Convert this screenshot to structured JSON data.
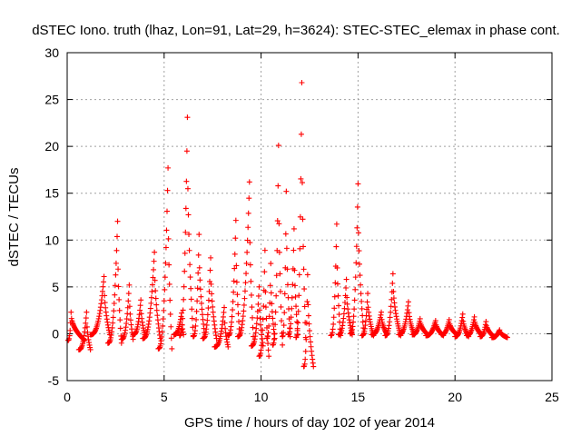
{
  "chart_data": {
    "type": "scatter",
    "title": "dSTEC Iono. truth (lhaz, Lon=91, Lat=29, h=3624): STEC-STEC_elemax in phase cont.",
    "xlabel": "GPS time / hours of day 102 of year 2014",
    "ylabel": "dSTEC  / TECUs",
    "xlim": [
      0,
      25
    ],
    "ylim": [
      -5,
      30
    ],
    "xticks": [
      "0",
      "5",
      "10",
      "15",
      "20",
      "25"
    ],
    "yticks": [
      "-5",
      "0",
      "5",
      "10",
      "15",
      "20",
      "25",
      "30"
    ],
    "grid": true,
    "marker": "+",
    "marker_color": "#ff0000",
    "arcs_note": "Each arc: start hour, peak hour, end hour, minimum dSTEC, peak dSTEC",
    "arcs": [
      {
        "start": 0.05,
        "peak": 0.2,
        "end": 0.9,
        "min": -0.7,
        "max": 2.3
      },
      {
        "start": 0.6,
        "peak": 1.0,
        "end": 1.2,
        "min": -1.7,
        "max": 2.3
      },
      {
        "start": 1.2,
        "peak": 1.9,
        "end": 2.2,
        "min": -0.1,
        "max": 6.1
      },
      {
        "start": 2.1,
        "peak": 2.6,
        "end": 2.8,
        "min": -1.0,
        "max": 12.0
      },
      {
        "start": 2.8,
        "peak": 3.2,
        "end": 3.4,
        "min": -0.6,
        "max": 5.2
      },
      {
        "start": 3.4,
        "peak": 3.8,
        "end": 4.0,
        "min": -0.1,
        "max": 3.6
      },
      {
        "start": 3.9,
        "peak": 4.5,
        "end": 4.8,
        "min": -0.5,
        "max": 8.7
      },
      {
        "start": 4.7,
        "peak": 5.2,
        "end": 5.4,
        "min": -1.6,
        "max": 17.7
      },
      {
        "start": 5.5,
        "peak": 5.9,
        "end": 6.0,
        "min": -0.1,
        "max": 2.2
      },
      {
        "start": 5.8,
        "peak": 6.2,
        "end": 6.5,
        "min": -0.2,
        "max": 23.1
      },
      {
        "start": 6.5,
        "peak": 6.8,
        "end": 7.1,
        "min": -0.3,
        "max": 10.6
      },
      {
        "start": 7.0,
        "peak": 7.4,
        "end": 7.7,
        "min": -0.5,
        "max": 8.1
      },
      {
        "start": 7.6,
        "peak": 8.1,
        "end": 8.3,
        "min": -1.4,
        "max": 2.8
      },
      {
        "start": 8.3,
        "peak": 8.7,
        "end": 8.9,
        "min": -0.2,
        "max": 12.1
      },
      {
        "start": 8.8,
        "peak": 9.4,
        "end": 9.6,
        "min": -0.3,
        "max": 16.2
      },
      {
        "start": 9.5,
        "peak": 9.9,
        "end": 10.1,
        "min": -1.3,
        "max": 5.0
      },
      {
        "start": 9.9,
        "peak": 10.2,
        "end": 10.4,
        "min": -2.4,
        "max": 8.9
      },
      {
        "start": 10.3,
        "peak": 10.5,
        "end": 10.7,
        "min": -0.5,
        "max": 7.5
      },
      {
        "start": 10.6,
        "peak": 10.9,
        "end": 11.1,
        "min": -1.2,
        "max": 20.1
      },
      {
        "start": 11.1,
        "peak": 11.3,
        "end": 11.5,
        "min": -0.3,
        "max": 15.2
      },
      {
        "start": 11.4,
        "peak": 11.7,
        "end": 11.9,
        "min": -0.1,
        "max": 11.2
      },
      {
        "start": 11.8,
        "peak": 12.1,
        "end": 12.3,
        "min": -0.4,
        "max": 26.8
      },
      {
        "start": 12.2,
        "peak": 12.4,
        "end": 12.7,
        "min": -3.5,
        "max": 6.3
      },
      {
        "start": 13.6,
        "peak": 13.9,
        "end": 14.1,
        "min": -0.2,
        "max": 11.7
      },
      {
        "start": 14.0,
        "peak": 14.4,
        "end": 14.7,
        "min": -0.1,
        "max": 5.8
      },
      {
        "start": 14.6,
        "peak": 15.0,
        "end": 15.3,
        "min": 0.0,
        "max": 16.0
      },
      {
        "start": 15.2,
        "peak": 15.5,
        "end": 15.8,
        "min": -0.2,
        "max": 4.3
      },
      {
        "start": 15.7,
        "peak": 16.2,
        "end": 16.5,
        "min": -0.1,
        "max": 2.3
      },
      {
        "start": 16.4,
        "peak": 16.8,
        "end": 17.2,
        "min": -0.2,
        "max": 6.4
      },
      {
        "start": 17.1,
        "peak": 17.6,
        "end": 17.9,
        "min": -0.1,
        "max": 3.4
      },
      {
        "start": 17.8,
        "peak": 18.2,
        "end": 18.6,
        "min": -0.1,
        "max": 1.6
      },
      {
        "start": 18.5,
        "peak": 19.0,
        "end": 19.4,
        "min": -0.2,
        "max": 1.4
      },
      {
        "start": 19.3,
        "peak": 19.7,
        "end": 20.1,
        "min": -0.1,
        "max": 1.5
      },
      {
        "start": 20.0,
        "peak": 20.4,
        "end": 20.7,
        "min": -0.3,
        "max": 2.1
      },
      {
        "start": 20.6,
        "peak": 21.0,
        "end": 21.4,
        "min": -0.2,
        "max": 1.8
      },
      {
        "start": 21.3,
        "peak": 21.6,
        "end": 22.0,
        "min": -0.3,
        "max": 1.3
      },
      {
        "start": 21.9,
        "peak": 22.3,
        "end": 22.7,
        "min": -0.4,
        "max": 0.4
      }
    ]
  }
}
